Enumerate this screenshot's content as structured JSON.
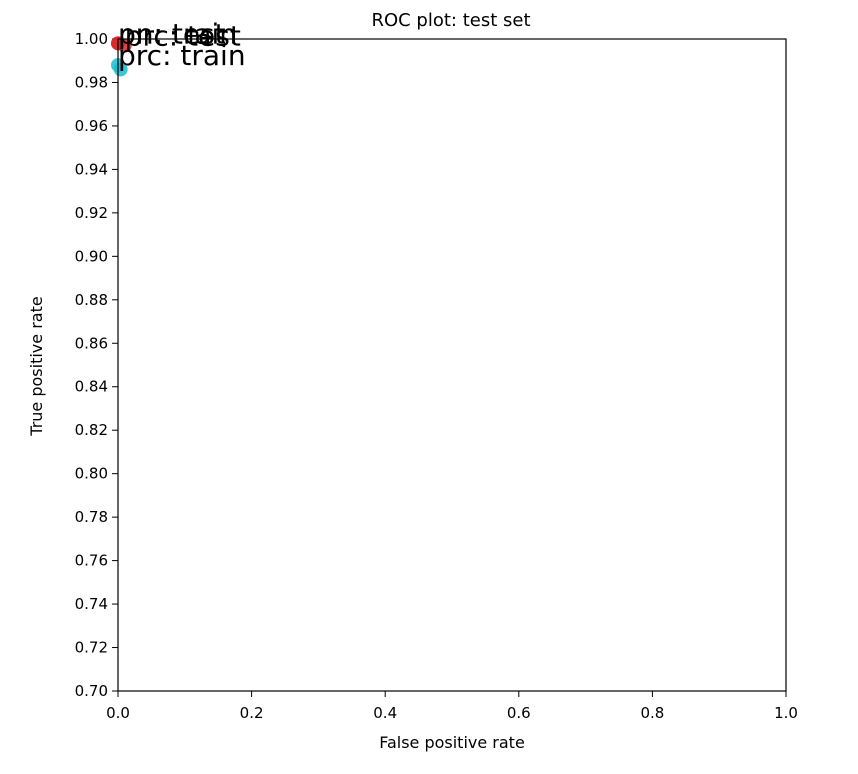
{
  "chart_data": {
    "type": "scatter",
    "title": "ROC plot: test set",
    "xlabel": "False positive rate",
    "ylabel": "True positive rate",
    "xlim": [
      0.0,
      1.0
    ],
    "ylim": [
      0.7,
      1.0
    ],
    "x_ticks": [
      "0.0",
      "0.2",
      "0.4",
      "0.6",
      "0.8",
      "1.0"
    ],
    "y_ticks": [
      "0.70",
      "0.72",
      "0.74",
      "0.76",
      "0.78",
      "0.80",
      "0.82",
      "0.84",
      "0.86",
      "0.88",
      "0.90",
      "0.92",
      "0.94",
      "0.96",
      "0.98",
      "1.00"
    ],
    "grid": false,
    "points": [
      {
        "label": "prc: test",
        "x": 0.01,
        "y": 0.997,
        "color": "#d62728"
      },
      {
        "label": "pn: test",
        "x": 0.0,
        "y": 0.998,
        "color": "#d62728"
      },
      {
        "label": "pn: train",
        "x": 0.0,
        "y": 0.998,
        "color": "#d62728"
      },
      {
        "label": "prc: train",
        "x": 0.0,
        "y": 0.988,
        "color": "#17becf"
      },
      {
        "label": "",
        "x": 0.004,
        "y": 0.986,
        "color": "#17becf"
      }
    ]
  }
}
